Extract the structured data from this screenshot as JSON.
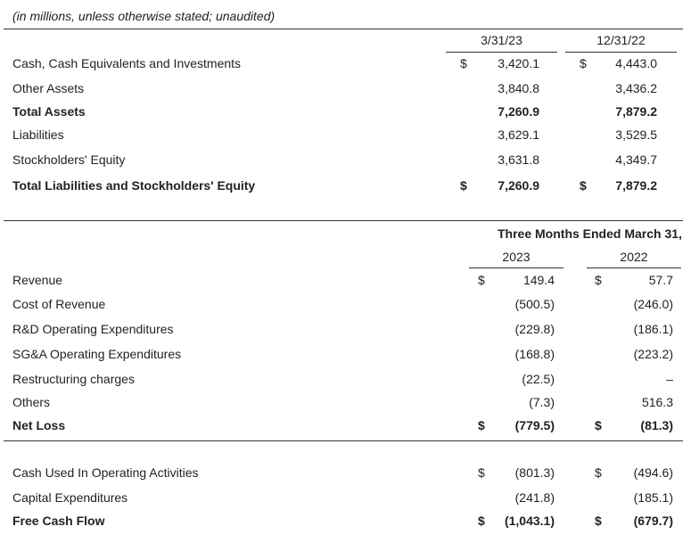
{
  "note": "(in millions, unless otherwise stated; unaudited)",
  "balance": {
    "col1": "3/31/23",
    "col2": "12/31/22",
    "rows": [
      {
        "label": "Cash, Cash Equivalents and Investments",
        "c1": "$",
        "v1": "3,420.1",
        "c2": "$",
        "v2": "4,443.0",
        "bold": false
      },
      {
        "label": "Other Assets",
        "c1": "",
        "v1": "3,840.8",
        "c2": "",
        "v2": "3,436.2",
        "bold": false
      },
      {
        "label": "Total Assets",
        "c1": "",
        "v1": "7,260.9",
        "c2": "",
        "v2": "7,879.2",
        "bold": true
      },
      {
        "label": "Liabilities",
        "c1": "",
        "v1": "3,629.1",
        "c2": "",
        "v2": "3,529.5",
        "bold": false
      },
      {
        "label": "Stockholders' Equity",
        "c1": "",
        "v1": "3,631.8",
        "c2": "",
        "v2": "4,349.7",
        "bold": false
      },
      {
        "label": "Total Liabilities and Stockholders' Equity",
        "c1": "$",
        "v1": "7,260.9",
        "c2": "$",
        "v2": "7,879.2",
        "bold": true
      }
    ]
  },
  "income": {
    "period": "Three Months Ended March 31,",
    "col1": "2023",
    "col2": "2022",
    "rows": [
      {
        "label": "Revenue",
        "c1": "$",
        "v1": "149.4",
        "c2": "$",
        "v2": "57.7",
        "bold": false
      },
      {
        "label": "Cost of Revenue",
        "c1": "",
        "v1": "(500.5)",
        "c2": "",
        "v2": "(246.0)",
        "bold": false
      },
      {
        "label": "R&D Operating Expenditures",
        "c1": "",
        "v1": "(229.8)",
        "c2": "",
        "v2": "(186.1)",
        "bold": false
      },
      {
        "label": "SG&A Operating Expenditures",
        "c1": "",
        "v1": "(168.8)",
        "c2": "",
        "v2": "(223.2)",
        "bold": false
      },
      {
        "label": "Restructuring charges",
        "c1": "",
        "v1": "(22.5)",
        "c2": "",
        "v2": "–",
        "bold": false
      },
      {
        "label": "Others",
        "c1": "",
        "v1": "(7.3)",
        "c2": "",
        "v2": "516.3",
        "bold": false
      },
      {
        "label": "Net Loss",
        "c1": "$",
        "v1": "(779.5)",
        "c2": "$",
        "v2": "(81.3)",
        "bold": true
      }
    ]
  },
  "cashflow": {
    "rows": [
      {
        "label": "Cash Used In Operating Activities",
        "c1": "$",
        "v1": "(801.3)",
        "c2": "$",
        "v2": "(494.6)",
        "bold": false
      },
      {
        "label": "Capital Expenditures",
        "c1": "",
        "v1": "(241.8)",
        "c2": "",
        "v2": "(185.1)",
        "bold": false
      },
      {
        "label": "Free Cash Flow",
        "c1": "$",
        "v1": "(1,043.1)",
        "c2": "$",
        "v2": "(679.7)",
        "bold": true
      }
    ]
  }
}
